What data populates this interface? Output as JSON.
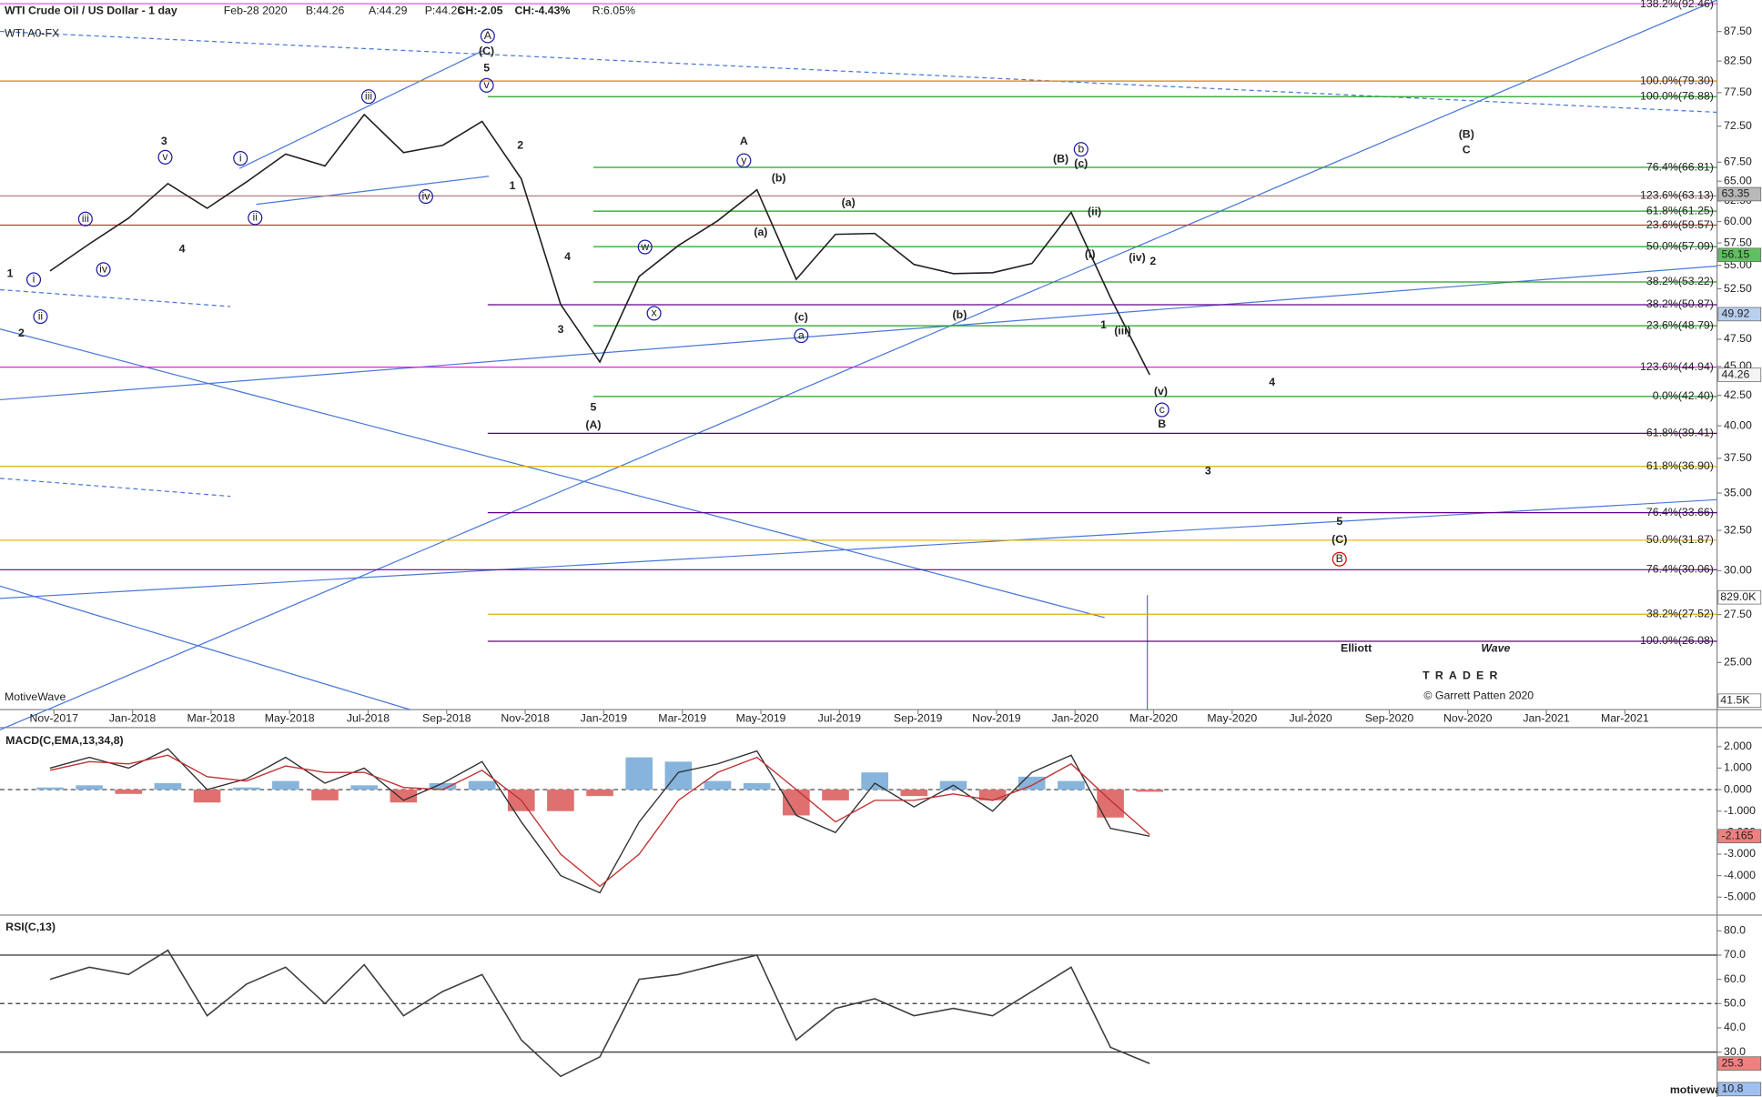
{
  "chart_data": [
    {
      "type": "line",
      "title": "WTI A0-FX",
      "subtitle": "WTI Crude Oil / US Dollar - 1 day",
      "quote": {
        "date": "Feb-28 2020",
        "bid": "B:44.26",
        "ask": "A:44.29",
        "price": "P:44.26",
        "change": "CH:-2.05",
        "change_pct": "CH:-4.43%",
        "range": "R:6.05%"
      },
      "categories": [
        null,
        "Nov-2017",
        null,
        "Jan-2018",
        null,
        "Mar-2018",
        null,
        "May-2018",
        null,
        "Jul-2018",
        null,
        "Sep-2018",
        null,
        "Nov-2018",
        null,
        "Jan-2019",
        null,
        "Mar-2019",
        null,
        "May-2019",
        null,
        "Jul-2019",
        null,
        "Sep-2019",
        null,
        "Nov-2019",
        null,
        "Jan-2020",
        null,
        "Mar-2020",
        null,
        "May-2020",
        null,
        "Jul-2020",
        null,
        "Sep-2020",
        null,
        "Nov-2020",
        null,
        "Jan-2021",
        null,
        "Mar-2021"
      ],
      "values": [
        54.4,
        57.4,
        60.4,
        64.7,
        61.6,
        64.9,
        68.6,
        67.0,
        74.2,
        68.8,
        69.8,
        73.2,
        65.3,
        50.9,
        45.4,
        53.8,
        57.2,
        60.1,
        63.9,
        53.5,
        58.5,
        58.6,
        55.1,
        54.1,
        54.2,
        55.2,
        61.1,
        51.6,
        44.26,
        null,
        null,
        null,
        null,
        null,
        null,
        null,
        null,
        null,
        null,
        null,
        null,
        null
      ],
      "color": "#202020",
      "log_scale": true,
      "ylim": [
        22.77,
        93.14
      ],
      "yticks": [
        {
          "value": 87.5,
          "label": "87.50"
        },
        {
          "value": 82.5,
          "label": "82.50"
        },
        {
          "value": 77.5,
          "label": "77.50"
        },
        {
          "value": 72.5,
          "label": "72.50"
        },
        {
          "value": 67.5,
          "label": "67.50"
        },
        {
          "value": 65,
          "label": "65.00"
        },
        {
          "value": 62.5,
          "label": "62.50"
        },
        {
          "value": 60,
          "label": "60.00"
        },
        {
          "value": 57.5,
          "label": "57.50"
        },
        {
          "value": 55,
          "label": "55.00"
        },
        {
          "value": 52.5,
          "label": "52.50"
        },
        {
          "value": 50,
          "label": "50.00"
        },
        {
          "value": 47.5,
          "label": "47.50"
        },
        {
          "value": 45,
          "label": "45.00"
        },
        {
          "value": 42.5,
          "label": "42.50"
        },
        {
          "value": 40,
          "label": "40.00"
        },
        {
          "value": 37.5,
          "label": "37.50"
        },
        {
          "value": 35,
          "label": "35.00"
        },
        {
          "value": 32.5,
          "label": "32.50"
        },
        {
          "value": 30,
          "label": "30.00"
        },
        {
          "value": 27.5,
          "label": "27.50"
        },
        {
          "value": 25,
          "label": "25.00"
        }
      ],
      "fib_levels": [
        {
          "label": "138.2%(92.46)",
          "value": 92.46,
          "color": "#e040e0"
        },
        {
          "label": "100.0%(79.30)",
          "value": 79.3,
          "color": "#e08000"
        },
        {
          "label": "100.0%(76.88)",
          "value": 76.88,
          "color": "#20a020"
        },
        {
          "label": "76.4%(66.81)",
          "value": 66.81,
          "color": "#20a020"
        },
        {
          "label": "123.6%(63.13)",
          "value": 63.13,
          "color": "#b08080"
        },
        {
          "label": "61.8%(61.25)",
          "value": 61.25,
          "color": "#20a020"
        },
        {
          "label": "23.6%(59.57)",
          "value": 59.57,
          "color": "#d03030"
        },
        {
          "label": "50.0%(57.09)",
          "value": 57.09,
          "color": "#20a020"
        },
        {
          "label": "38.2%(53.22)",
          "value": 53.22,
          "color": "#20a020"
        },
        {
          "label": "38.2%(50.87)",
          "value": 50.87,
          "color": "#600090"
        },
        {
          "label": "23.6%(48.79)",
          "value": 48.79,
          "color": "#20a020"
        },
        {
          "label": "123.6%(44.94)",
          "value": 44.94,
          "color": "#e020e0"
        },
        {
          "label": "0.0%(42.40)",
          "value": 42.4,
          "color": "#20a020"
        },
        {
          "label": "61.8%(39.41)",
          "value": 39.41,
          "color": "#600090"
        },
        {
          "label": "61.8%(36.90)",
          "value": 36.9,
          "color": "#e0b000"
        },
        {
          "label": "76.4%(33.66)",
          "value": 33.66,
          "color": "#600090"
        },
        {
          "label": "50.0%(31.87)",
          "value": 31.87,
          "color": "#e0b000"
        },
        {
          "label": "76.4%(30.06)",
          "value": 30.06,
          "color": "#600090"
        },
        {
          "label": "38.2%(27.52)",
          "value": 27.52,
          "color": "#e0b000"
        },
        {
          "label": "100.0%(26.08)",
          "value": 26.08,
          "color": "#600090"
        }
      ],
      "price_badges": [
        {
          "label": "63.35",
          "value": 63.35,
          "color": "#b8b8b8"
        },
        {
          "label": "56.15",
          "value": 56.15,
          "color": "#60c060"
        },
        {
          "label": "49.92",
          "value": 49.92,
          "color": "#b8d0f0"
        },
        {
          "label": "44.26",
          "value": 44.26,
          "color": "#f4f4f4"
        }
      ],
      "volume_labels": [
        "829.0K",
        "41.5K"
      ],
      "wave_labels": [
        {
          "text": "1",
          "color": "#1a1aa0"
        },
        {
          "text": "2",
          "color": "#1a1aa0"
        },
        {
          "text": "i",
          "color": "#1a1aa0",
          "circled": true
        },
        {
          "text": "ii",
          "color": "#1a1aa0",
          "circled": true
        },
        {
          "text": "iii",
          "color": "#1a1aa0",
          "circled": true
        },
        {
          "text": "iv",
          "color": "#1a1aa0",
          "circled": true
        },
        {
          "text": "3",
          "color": "#1a1aa0"
        },
        {
          "text": "v",
          "color": "#1a1aa0",
          "circled": true
        },
        {
          "text": "4",
          "color": "#1a1aa0"
        },
        {
          "text": "i",
          "color": "#1a1aa0",
          "circled": true
        },
        {
          "text": "ii",
          "color": "#1a1aa0",
          "circled": true
        },
        {
          "text": "iii",
          "color": "#1a1aa0",
          "circled": true
        },
        {
          "text": "iv",
          "color": "#1a1aa0",
          "circled": true
        },
        {
          "text": "5",
          "color": "#1a1aa0"
        },
        {
          "text": "v",
          "color": "#1a1aa0",
          "circled": true
        },
        {
          "text": "(C)",
          "color": "#1a1aa0"
        },
        {
          "text": "A",
          "color": "#1a1aa0",
          "circled": true
        },
        {
          "text": "1",
          "color": "#1a1aa0"
        },
        {
          "text": "2",
          "color": "#1a1aa0"
        },
        {
          "text": "4",
          "color": "#1a1aa0"
        },
        {
          "text": "3",
          "color": "#1a1aa0"
        },
        {
          "text": "5",
          "color": "#1a1aa0"
        },
        {
          "text": "(A)",
          "color": "#1a1aa0"
        },
        {
          "text": "w",
          "color": "#1a1aa0",
          "circled": true
        },
        {
          "text": "x",
          "color": "#1a1aa0",
          "circled": true
        },
        {
          "text": "y",
          "color": "#1a1aa0",
          "circled": true
        },
        {
          "text": "A",
          "color": "#1a1aa0"
        },
        {
          "text": "(b)",
          "color": "#1a1aa0"
        },
        {
          "text": "(a)",
          "color": "#1a1aa0"
        },
        {
          "text": "(c)",
          "color": "#1a1aa0"
        },
        {
          "text": "a",
          "color": "#1a1aa0",
          "circled": true
        },
        {
          "text": "(a)",
          "color": "#1a1aa0"
        },
        {
          "text": "(b)",
          "color": "#1a1aa0"
        },
        {
          "text": "b",
          "color": "#1a1aa0",
          "circled": true
        },
        {
          "text": "(c)",
          "color": "#1a1aa0"
        },
        {
          "text": "(ii)",
          "color": "#1a1aa0"
        },
        {
          "text": "(i)",
          "color": "#1a1aa0"
        },
        {
          "text": "(iv)",
          "color": "#1a1aa0"
        },
        {
          "text": "(iii)",
          "color": "#1a1aa0"
        },
        {
          "text": "(v)",
          "color": "#1a1aa0"
        },
        {
          "text": "c",
          "color": "#1a1aa0",
          "circled": true
        },
        {
          "text": "B",
          "color": "#1a1aa0"
        },
        {
          "text": "(B)",
          "color": "#1a1aa0"
        },
        {
          "text": "C",
          "color": "#1a1aa0"
        },
        {
          "text": "(B)",
          "color": "#e00000"
        },
        {
          "text": "2",
          "color": "#e00000"
        },
        {
          "text": "1",
          "color": "#e00000"
        },
        {
          "text": "4",
          "color": "#e00000"
        },
        {
          "text": "3",
          "color": "#e00000"
        },
        {
          "text": "5",
          "color": "#e00000"
        },
        {
          "text": "(C)",
          "color": "#e00000"
        },
        {
          "text": "B",
          "color": "#e00000",
          "circled": true
        }
      ],
      "source": "MotiveWave",
      "logo": {
        "word1": "Elliott",
        "word2": "Wave",
        "tag": "TRADER",
        "credit": "© Garrett Patten 2020"
      },
      "footer": "motivewave.com"
    },
    {
      "type": "macd",
      "title": "MACD(C,EMA,13,34,8)",
      "series": [
        {
          "color": "#303030",
          "values": [
            1.0,
            1.5,
            1.0,
            1.9,
            0.0,
            0.5,
            1.5,
            0.3,
            1.0,
            -0.5,
            0.3,
            1.3,
            -1.5,
            -4.0,
            -4.8,
            -1.5,
            0.8,
            1.2,
            1.8,
            -1.2,
            -2.0,
            0.3,
            -0.8,
            0.2,
            -1.0,
            0.8,
            1.6,
            -1.8,
            -2.165,
            null,
            null,
            null,
            null,
            null,
            null,
            null,
            null,
            null,
            null,
            null,
            null,
            null
          ]
        },
        {
          "color": "#c03030",
          "values": [
            0.9,
            1.3,
            1.2,
            1.6,
            0.6,
            0.4,
            1.1,
            0.8,
            0.8,
            0.1,
            0.0,
            0.9,
            -0.5,
            -3.0,
            -4.5,
            -3.0,
            -0.5,
            0.8,
            1.5,
            0.0,
            -1.5,
            -0.5,
            -0.5,
            -0.2,
            -0.5,
            0.2,
            1.2,
            -0.5,
            -2.1,
            null,
            null,
            null,
            null,
            null,
            null,
            null,
            null,
            null,
            null,
            null,
            null,
            null
          ]
        }
      ],
      "histogram": {
        "up_color": "#86b4dc",
        "down_color": "#e07070",
        "values": [
          0.1,
          0.2,
          -0.2,
          0.3,
          -0.6,
          0.1,
          0.4,
          -0.5,
          0.2,
          -0.6,
          0.3,
          0.4,
          -1.0,
          -1.0,
          -0.3,
          1.5,
          1.3,
          0.4,
          0.3,
          -1.2,
          -0.5,
          0.8,
          -0.3,
          0.4,
          -0.5,
          0.6,
          0.4,
          -1.3,
          -0.1,
          null,
          null,
          null,
          null,
          null,
          null,
          null,
          null,
          null,
          null,
          null,
          null,
          null
        ]
      },
      "ylim": [
        -5.68,
        2.78
      ],
      "yticks": [
        {
          "value": 2,
          "label": "2.000"
        },
        {
          "value": 1,
          "label": "1.000"
        },
        {
          "value": 0,
          "label": "0.000"
        },
        {
          "value": -1,
          "label": "-1.000"
        },
        {
          "value": -2,
          "label": "-2.000"
        },
        {
          "value": -3,
          "label": "-3.000"
        },
        {
          "value": -4,
          "label": "-4.000"
        },
        {
          "value": -5,
          "label": "-5.000"
        }
      ],
      "badges": [
        {
          "label": "-2.165",
          "value": -2.165,
          "color": "#f08080"
        }
      ]
    },
    {
      "type": "line",
      "title": "RSI(C,13)",
      "values": [
        60,
        65,
        62,
        72,
        45,
        58,
        65,
        50,
        66,
        45,
        55,
        62,
        35,
        20,
        28,
        60,
        62,
        66,
        70,
        35,
        48,
        52,
        45,
        48,
        45,
        55,
        65,
        32,
        25.3,
        null,
        null,
        null,
        null,
        null,
        null,
        null,
        null,
        null,
        null,
        null,
        null,
        null
      ],
      "color": "#404040",
      "ylim": [
        11.48,
        85.56
      ],
      "yticks": [
        {
          "value": 80,
          "label": "80.0"
        },
        {
          "value": 70,
          "label": "70.0"
        },
        {
          "value": 60,
          "label": "60.0"
        },
        {
          "value": 50,
          "label": "50.0"
        },
        {
          "value": 40,
          "label": "40.0"
        },
        {
          "value": 30,
          "label": "30.0"
        }
      ],
      "guides": [
        {
          "value": 70,
          "style": "solid"
        },
        {
          "value": 50,
          "style": "dashed"
        },
        {
          "value": 30,
          "style": "solid"
        }
      ],
      "badges": [
        {
          "label": "25.3",
          "value": 25.3,
          "color": "#f08080"
        },
        {
          "label": "10.8",
          "value": 10.8,
          "color": "#a0c0f0"
        }
      ]
    }
  ]
}
